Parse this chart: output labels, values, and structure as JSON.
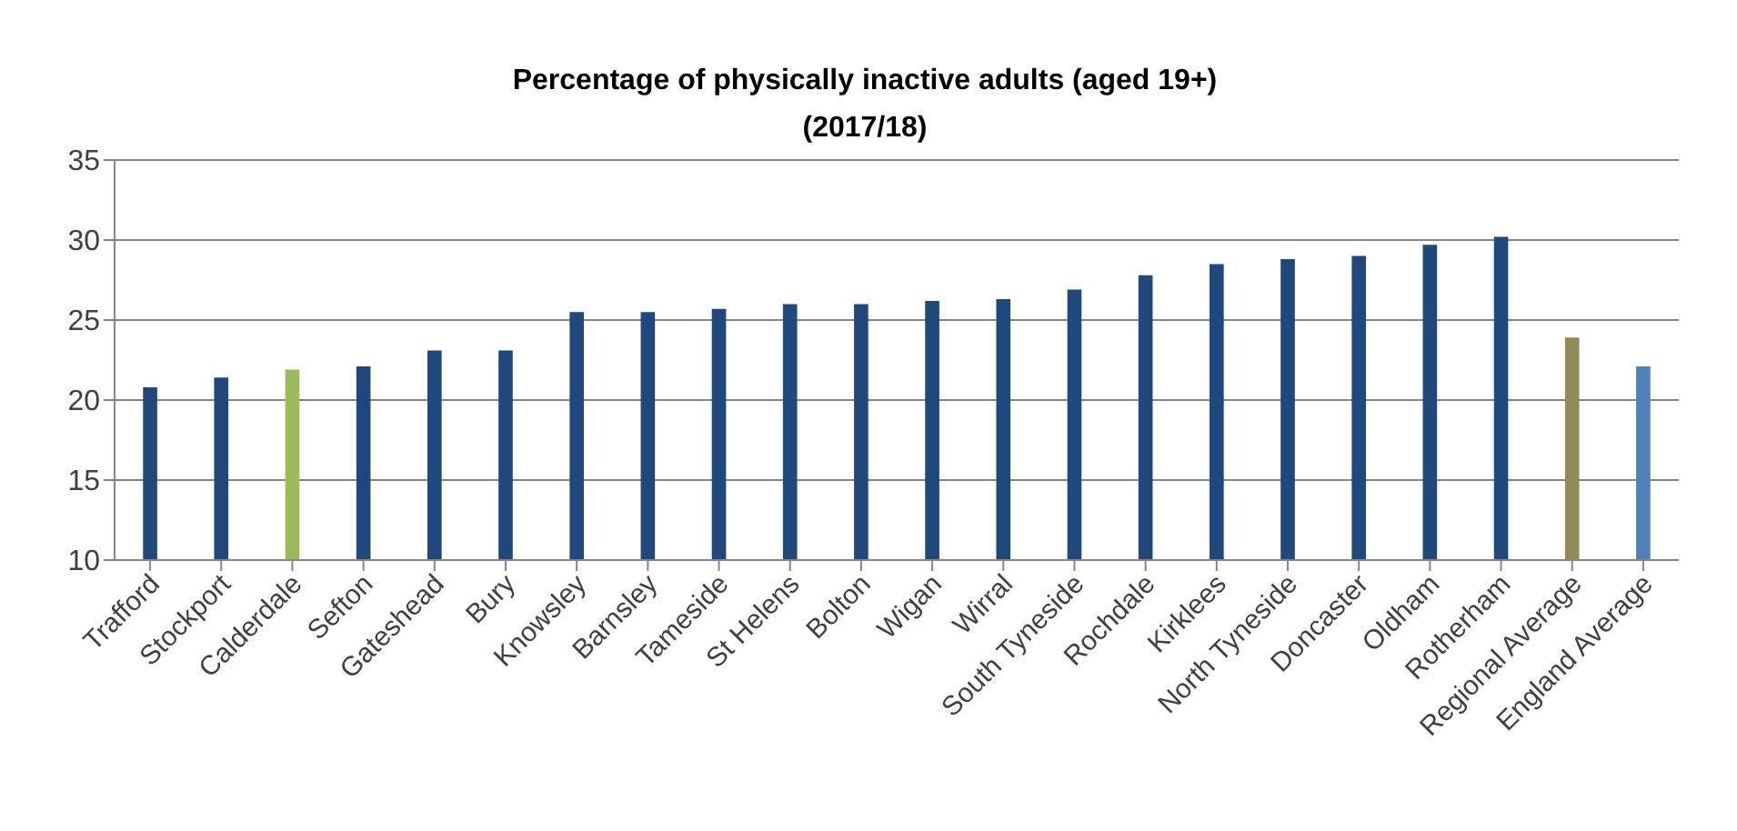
{
  "chart_data": {
    "type": "bar",
    "title": "Percentage of physically inactive adults (aged 19+)",
    "subtitle": "(2017/18)",
    "categories": [
      "Trafford",
      "Stockport",
      "Calderdale",
      "Sefton",
      "Gateshead",
      "Bury",
      "Knowsley",
      "Barnsley",
      "Tameside",
      "St Helens",
      "Bolton",
      "Wigan",
      "Wirral",
      "South Tyneside",
      "Rochdale",
      "Kirklees",
      "North Tyneside",
      "Doncaster",
      "Oldham",
      "Rotherham",
      "Regional Average",
      "England Average"
    ],
    "values": [
      20.8,
      21.4,
      21.9,
      22.1,
      23.1,
      23.1,
      25.5,
      25.5,
      25.7,
      26.0,
      26.0,
      26.2,
      26.3,
      26.9,
      27.8,
      28.5,
      28.8,
      29.0,
      29.7,
      30.2,
      23.9,
      22.1
    ],
    "colors": [
      "#1f497d",
      "#1f497d",
      "#9bbb59",
      "#1f497d",
      "#1f497d",
      "#1f497d",
      "#1f497d",
      "#1f497d",
      "#1f497d",
      "#1f497d",
      "#1f497d",
      "#1f497d",
      "#1f497d",
      "#1f497d",
      "#1f497d",
      "#1f497d",
      "#1f497d",
      "#1f497d",
      "#1f497d",
      "#1f497d",
      "#948a54",
      "#4f81bd"
    ],
    "ylim": [
      10,
      35
    ],
    "yticks": [
      10,
      15,
      20,
      25,
      30,
      35
    ],
    "grid": "y"
  }
}
